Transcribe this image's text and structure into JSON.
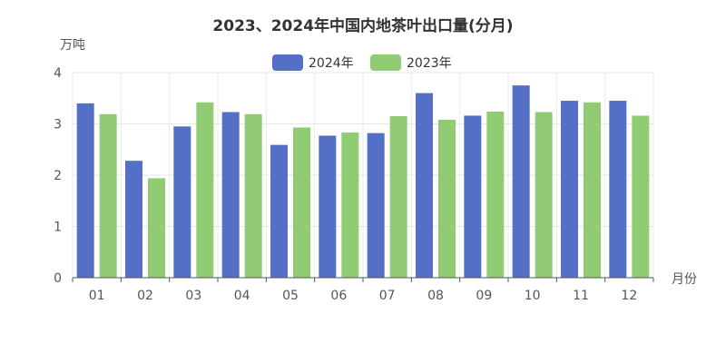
{
  "chart_data": {
    "type": "bar",
    "title": "2023、2024年中国内地茶叶出口量(分月)",
    "ylabel": "万吨",
    "xlabel": "月份",
    "ylim": [
      0,
      4
    ],
    "yticks": [
      "0",
      "1",
      "2",
      "3",
      "4"
    ],
    "categories": [
      "01",
      "02",
      "03",
      "04",
      "05",
      "06",
      "07",
      "08",
      "09",
      "10",
      "11",
      "12"
    ],
    "series": [
      {
        "name": "2024年",
        "color": "#5470c6",
        "values": [
          3.4,
          2.28,
          2.95,
          3.23,
          2.59,
          2.77,
          2.82,
          3.6,
          3.16,
          3.75,
          3.45,
          3.45
        ]
      },
      {
        "name": "2023年",
        "color": "#91cc75",
        "values": [
          3.19,
          1.94,
          3.42,
          3.19,
          2.93,
          2.83,
          3.15,
          3.08,
          3.24,
          3.23,
          3.42,
          3.16
        ]
      }
    ],
    "grid": "vertical",
    "legend_position": "top-center"
  }
}
